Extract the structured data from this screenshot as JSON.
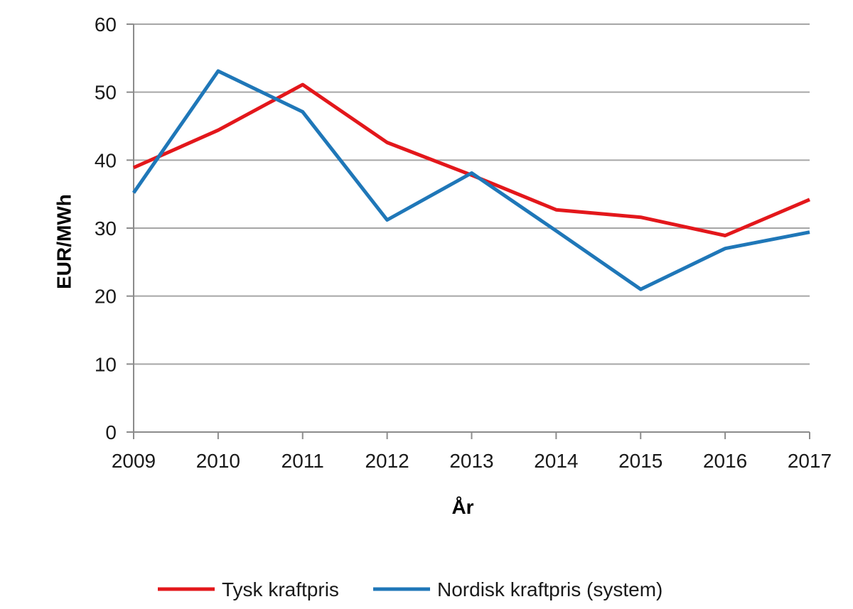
{
  "chart_data": {
    "type": "line",
    "title": "",
    "xlabel": "År",
    "ylabel": "EUR/MWh",
    "x": [
      "2009",
      "2010",
      "2011",
      "2012",
      "2013",
      "2014",
      "2015",
      "2016",
      "2017"
    ],
    "ylim": [
      0,
      60
    ],
    "yticks": [
      "0",
      "10",
      "20",
      "30",
      "40",
      "50",
      "60"
    ],
    "grid": true,
    "legend_position": "bottom",
    "series": [
      {
        "name": "Tysk kraftpris",
        "color": "#e3171b",
        "values": [
          38.9,
          44.4,
          51.1,
          42.6,
          37.8,
          32.7,
          31.6,
          28.9,
          34.2
        ]
      },
      {
        "name": "Nordisk kraftpris (system)",
        "color": "#1f77b8",
        "values": [
          35.2,
          53.1,
          47.1,
          31.2,
          38.1,
          29.6,
          21.0,
          27.0,
          29.4
        ]
      }
    ]
  }
}
